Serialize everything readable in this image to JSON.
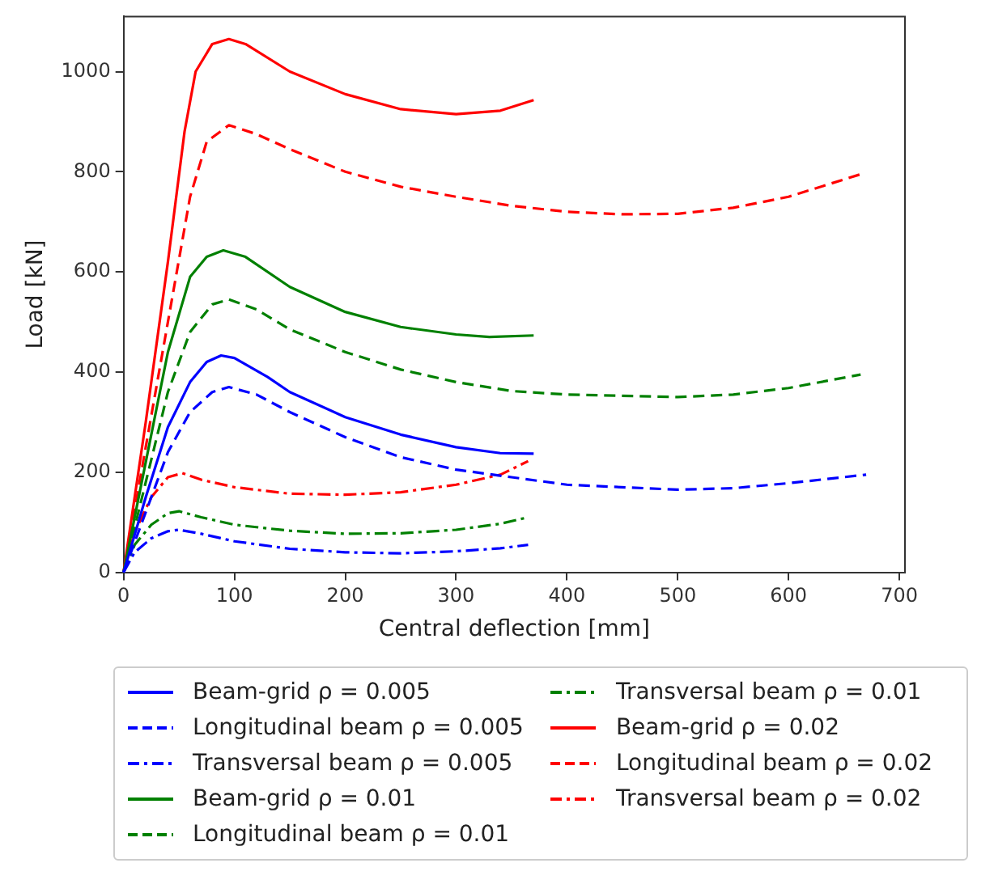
{
  "chart_data": {
    "type": "line",
    "xlabel": "Central deflection [mm]",
    "ylabel": "Load [kN]",
    "xlim": [
      0,
      705
    ],
    "ylim": [
      0,
      1110
    ],
    "xticks": [
      0,
      100,
      200,
      300,
      400,
      500,
      600,
      700
    ],
    "yticks": [
      0,
      200,
      400,
      600,
      800,
      1000
    ],
    "grid": false,
    "legend": "bottom",
    "marker": "none",
    "series": [
      {
        "name": "Beam-grid ρ = 0.005",
        "color": "#0000ff",
        "line_style": "solid",
        "x": [
          0,
          20,
          40,
          60,
          75,
          88,
          100,
          130,
          150,
          200,
          250,
          300,
          340,
          370
        ],
        "values": [
          0,
          150,
          290,
          380,
          420,
          433,
          428,
          390,
          360,
          310,
          275,
          250,
          238,
          237
        ]
      },
      {
        "name": "Longitudinal beam ρ = 0.005",
        "color": "#0000ff",
        "line_style": "dashed",
        "x": [
          0,
          20,
          40,
          60,
          80,
          95,
          120,
          150,
          200,
          250,
          300,
          350,
          400,
          500,
          550,
          600,
          670
        ],
        "values": [
          0,
          120,
          240,
          320,
          360,
          370,
          355,
          320,
          270,
          230,
          205,
          190,
          175,
          165,
          168,
          178,
          195
        ]
      },
      {
        "name": "Transversal beam ρ = 0.005",
        "color": "#0000ff",
        "line_style": "dashdot",
        "x": [
          0,
          10,
          25,
          40,
          50,
          70,
          100,
          150,
          200,
          250,
          300,
          340,
          365
        ],
        "values": [
          0,
          40,
          68,
          82,
          85,
          77,
          62,
          47,
          40,
          38,
          42,
          48,
          55
        ]
      },
      {
        "name": "Beam-grid ρ = 0.01",
        "color": "#008000",
        "line_style": "solid",
        "x": [
          0,
          20,
          40,
          60,
          75,
          90,
          110,
          150,
          200,
          250,
          300,
          330,
          370
        ],
        "values": [
          0,
          220,
          440,
          590,
          630,
          643,
          630,
          570,
          520,
          490,
          475,
          470,
          473
        ]
      },
      {
        "name": "Longitudinal beam ρ = 0.01",
        "color": "#008000",
        "line_style": "dashed",
        "x": [
          0,
          20,
          40,
          60,
          80,
          95,
          120,
          150,
          200,
          250,
          300,
          350,
          400,
          500,
          550,
          600,
          665
        ],
        "values": [
          0,
          180,
          360,
          480,
          535,
          545,
          525,
          485,
          440,
          405,
          380,
          362,
          355,
          350,
          355,
          368,
          395
        ]
      },
      {
        "name": "Transversal beam ρ = 0.01",
        "color": "#008000",
        "line_style": "dashdot",
        "x": [
          0,
          10,
          25,
          40,
          50,
          70,
          100,
          150,
          200,
          250,
          300,
          340,
          365
        ],
        "values": [
          0,
          55,
          95,
          118,
          122,
          110,
          95,
          83,
          77,
          78,
          85,
          97,
          110
        ]
      },
      {
        "name": "Beam-grid ρ = 0.02",
        "color": "#ff0000",
        "line_style": "solid",
        "x": [
          0,
          20,
          40,
          55,
          65,
          80,
          95,
          110,
          150,
          200,
          250,
          300,
          340,
          370
        ],
        "values": [
          0,
          300,
          620,
          880,
          1000,
          1055,
          1065,
          1055,
          1000,
          955,
          925,
          915,
          922,
          943
        ]
      },
      {
        "name": "Longitudinal beam ρ = 0.02",
        "color": "#ff0000",
        "line_style": "dashed",
        "x": [
          0,
          20,
          40,
          60,
          75,
          95,
          120,
          150,
          200,
          250,
          300,
          350,
          400,
          450,
          500,
          550,
          600,
          665
        ],
        "values": [
          0,
          250,
          500,
          750,
          860,
          893,
          875,
          845,
          800,
          770,
          750,
          732,
          720,
          715,
          716,
          728,
          750,
          795
        ]
      },
      {
        "name": "Transversal beam ρ = 0.02",
        "color": "#ff0000",
        "line_style": "dashdot",
        "x": [
          0,
          10,
          25,
          40,
          53,
          70,
          100,
          150,
          200,
          250,
          300,
          340,
          365
        ],
        "values": [
          0,
          80,
          150,
          190,
          198,
          185,
          170,
          157,
          155,
          160,
          175,
          195,
          222
        ]
      }
    ]
  }
}
